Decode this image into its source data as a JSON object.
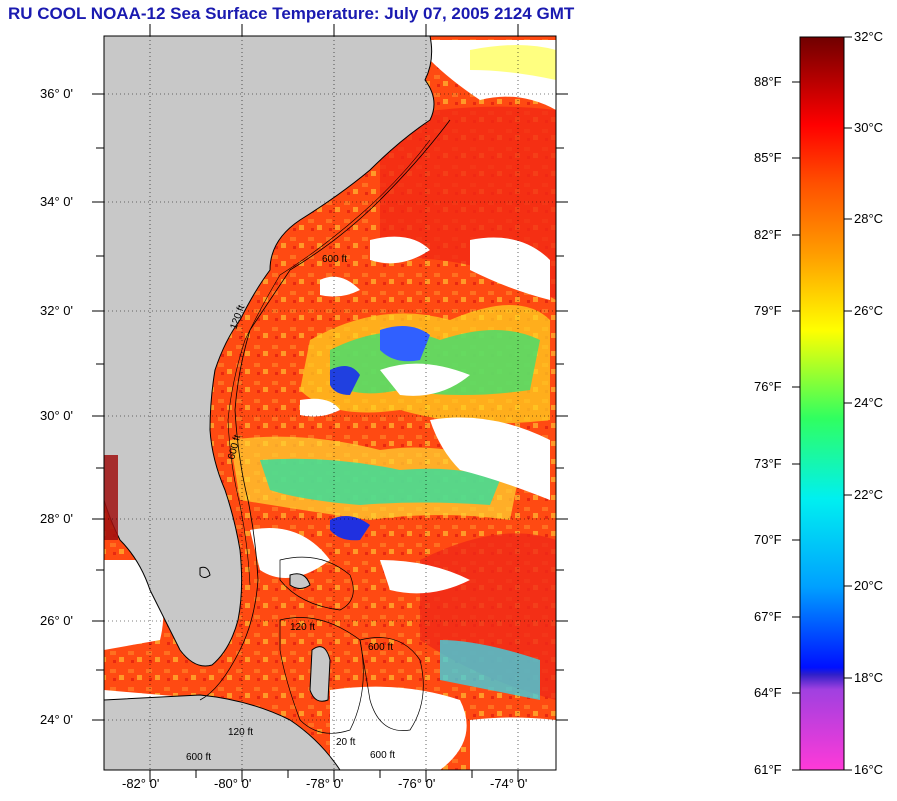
{
  "title": "RU COOL  NOAA-12  Sea Surface Temperature:  July 07, 2005 2124 GMT",
  "map": {
    "lat_labels": [
      "36° 0'",
      "34° 0'",
      "32° 0'",
      "30° 0'",
      "28° 0'",
      "26° 0'",
      "24° 0'"
    ],
    "lon_labels": [
      "-82° 0'",
      "-80° 0'",
      "-78° 0'",
      "-76° 0'",
      "-74° 0'"
    ],
    "isobath_labels": [
      "600 ft",
      "120 ft",
      "600 ft",
      "120 ft",
      "600 ft",
      "120 ft",
      "20 ft",
      "600 ft",
      "600 ft"
    ],
    "colors": {
      "land": "#c8c8c8",
      "cloud": "#ffffff",
      "warm": "#ff5a14",
      "hot": "#f02010"
    }
  },
  "colorbar": {
    "celsius_labels": [
      "32°C",
      "30°C",
      "28°C",
      "26°C",
      "24°C",
      "22°C",
      "20°C",
      "18°C",
      "16°C"
    ],
    "fahrenheit_labels": [
      "88°F",
      "85°F",
      "82°F",
      "79°F",
      "76°F",
      "73°F",
      "70°F",
      "67°F",
      "64°F",
      "61°F"
    ]
  }
}
